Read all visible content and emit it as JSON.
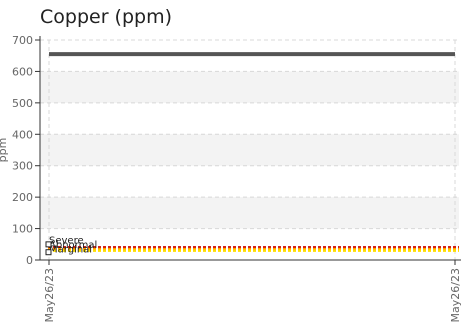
{
  "chart_data": {
    "type": "line",
    "title": "Copper (ppm)",
    "ylabel": "ppm",
    "xlabel": "",
    "ylim": [
      0,
      700
    ],
    "yticks": [
      0,
      100,
      200,
      300,
      400,
      500,
      600,
      700
    ],
    "grid": true,
    "x_categories": [
      "May26/23",
      "May26/23"
    ],
    "series": [
      {
        "name": "",
        "values": [
          655,
          655
        ],
        "color": "#555555"
      }
    ],
    "thresholds": [
      {
        "name": "Severe",
        "value": 40,
        "color": "#cc0000"
      },
      {
        "name": "Abnormal",
        "value": 35,
        "color": "#ff9900"
      },
      {
        "name": "Marginal",
        "value": 30,
        "color": "#ffdd00"
      }
    ]
  }
}
